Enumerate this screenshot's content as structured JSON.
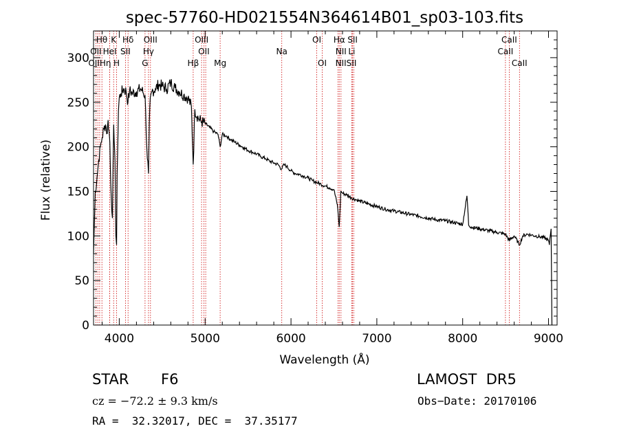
{
  "chart_data": {
    "type": "line",
    "title": "spec-57760-HD021554N364614B01_sp03-103.fits",
    "xlabel": "Wavelength (Å)",
    "ylabel": "Flux (relative)",
    "xlim": [
      3700,
      9100
    ],
    "ylim": [
      0,
      330
    ],
    "x_ticks": [
      4000,
      5000,
      6000,
      7000,
      8000,
      9000
    ],
    "y_ticks": [
      0,
      50,
      100,
      150,
      200,
      250,
      300
    ],
    "grid": false,
    "line_color": "#000000",
    "marker_color": "#cc0000",
    "spectrum": {
      "name": "",
      "x": [
        3700,
        3720,
        3740,
        3760,
        3780,
        3800,
        3820,
        3840,
        3860,
        3870,
        3880,
        3890,
        3900,
        3920,
        3935,
        3950,
        3960,
        3968,
        3975,
        3990,
        4000,
        4020,
        4050,
        4080,
        4101,
        4120,
        4150,
        4200,
        4250,
        4300,
        4320,
        4340,
        4355,
        4380,
        4420,
        4460,
        4500,
        4550,
        4600,
        4650,
        4700,
        4750,
        4800,
        4840,
        4861,
        4880,
        4920,
        4960,
        5000,
        5050,
        5100,
        5150,
        5175,
        5200,
        5250,
        5300,
        5350,
        5400,
        5450,
        5500,
        5550,
        5600,
        5650,
        5700,
        5750,
        5800,
        5850,
        5890,
        5920,
        5950,
        6000,
        6050,
        6100,
        6150,
        6200,
        6250,
        6300,
        6350,
        6400,
        6450,
        6500,
        6540,
        6563,
        6580,
        6600,
        6650,
        6700,
        6750,
        6800,
        6900,
        7000,
        7100,
        7200,
        7300,
        7400,
        7500,
        7600,
        7700,
        7800,
        7900,
        8000,
        8050,
        8060,
        8070,
        8100,
        8200,
        8300,
        8400,
        8498,
        8542,
        8600,
        8662,
        8700,
        8750,
        8800,
        8850,
        8900,
        8950,
        9000,
        9010,
        9020,
        9030,
        9040
      ],
      "y": [
        80,
        150,
        165,
        185,
        200,
        210,
        220,
        225,
        215,
        230,
        218,
        205,
        160,
        120,
        225,
        185,
        100,
        90,
        170,
        240,
        255,
        260,
        265,
        262,
        250,
        263,
        260,
        262,
        265,
        258,
        200,
        170,
        245,
        262,
        265,
        270,
        268,
        265,
        272,
        266,
        262,
        258,
        255,
        245,
        180,
        242,
        232,
        228,
        226,
        222,
        217,
        214,
        200,
        214,
        212,
        208,
        205,
        202,
        199,
        196,
        194,
        192,
        189,
        187,
        184,
        182,
        180,
        175,
        180,
        178,
        173,
        170,
        169,
        167,
        165,
        162,
        160,
        158,
        156,
        154,
        152,
        135,
        110,
        150,
        148,
        146,
        143,
        141,
        139,
        136,
        133,
        130,
        128,
        126,
        124,
        122,
        120,
        118,
        117,
        115,
        113,
        145,
        130,
        112,
        110,
        108,
        106,
        104,
        102,
        95,
        100,
        90,
        100,
        102,
        101,
        100,
        99,
        98,
        95,
        90,
        100,
        108,
        0
      ]
    },
    "line_markers": [
      {
        "wavelength": 3727,
        "label": "OII"
      },
      {
        "wavelength": 3750,
        "label": "OII"
      },
      {
        "wavelength": 3771,
        "label": "Hη"
      },
      {
        "wavelength": 3798,
        "label": "Hη"
      },
      {
        "wavelength": 3889,
        "label": "Hη"
      },
      {
        "wavelength": 3889,
        "label": "HeI"
      },
      {
        "wavelength": 3934,
        "label": "K"
      },
      {
        "wavelength": 3968,
        "label": "H"
      },
      {
        "wavelength": 4072,
        "label": "SII"
      },
      {
        "wavelength": 4102,
        "label": "Hδ"
      },
      {
        "wavelength": 4300,
        "label": "G"
      },
      {
        "wavelength": 4340,
        "label": "Hγ"
      },
      {
        "wavelength": 4363,
        "label": "OIII"
      },
      {
        "wavelength": 4861,
        "label": "Hβ"
      },
      {
        "wavelength": 4959,
        "label": "OIII"
      },
      {
        "wavelength": 4985,
        "label": "OII"
      },
      {
        "wavelength": 5007,
        "label": "OIII"
      },
      {
        "wavelength": 5175,
        "label": "Mg"
      },
      {
        "wavelength": 5893,
        "label": "Na"
      },
      {
        "wavelength": 6300,
        "label": "OI"
      },
      {
        "wavelength": 6364,
        "label": "OI"
      },
      {
        "wavelength": 6548,
        "label": "NII"
      },
      {
        "wavelength": 6563,
        "label": "Hα"
      },
      {
        "wavelength": 6583,
        "label": "NII"
      },
      {
        "wavelength": 6708,
        "label": "Li"
      },
      {
        "wavelength": 6717,
        "label": "SII"
      },
      {
        "wavelength": 6731,
        "label": "SII"
      },
      {
        "wavelength": 8498,
        "label": "CaII"
      },
      {
        "wavelength": 8542,
        "label": "CaII"
      },
      {
        "wavelength": 8662,
        "label": "CaII"
      }
    ],
    "marker_label_rows": [
      {
        "row": 1,
        "items": [
          [
            "Hθ",
            3797
          ],
          [
            "K",
            3934
          ],
          [
            "Hδ",
            4102
          ],
          [
            "OIII",
            4363
          ],
          [
            "OIII",
            4959
          ],
          [
            "OI",
            6300
          ],
          [
            "Hα",
            6563
          ],
          [
            "SII",
            6717
          ],
          [
            "CaII",
            8542
          ]
        ]
      },
      {
        "row": 2,
        "items": [
          [
            "OII",
            3727
          ],
          [
            "HeI",
            3889
          ],
          [
            "SII",
            4072
          ],
          [
            "Hγ",
            4340
          ],
          [
            "OII",
            4985
          ],
          [
            "Na",
            5893
          ],
          [
            "NII",
            6583
          ],
          [
            "Li",
            6708
          ],
          [
            "CaII",
            8498
          ]
        ]
      },
      {
        "row": 3,
        "items": [
          [
            "OIIHη",
            3771
          ],
          [
            "H",
            3968
          ],
          [
            "G",
            4300
          ],
          [
            "Hβ",
            4861
          ],
          [
            "Mg",
            5175
          ],
          [
            "OI",
            6364
          ],
          [
            "NIISII",
            6640
          ],
          [
            "CaII",
            8662
          ]
        ]
      }
    ]
  },
  "info": {
    "object_class": "STAR",
    "subclass": "F6",
    "survey": "LAMOST  DR5",
    "cz": "cz = −72.2 ± 9.3 km/s",
    "obs_date": "Obs−Date: 20170106",
    "coords": "RA =  32.32017, DEC =  37.35177"
  }
}
